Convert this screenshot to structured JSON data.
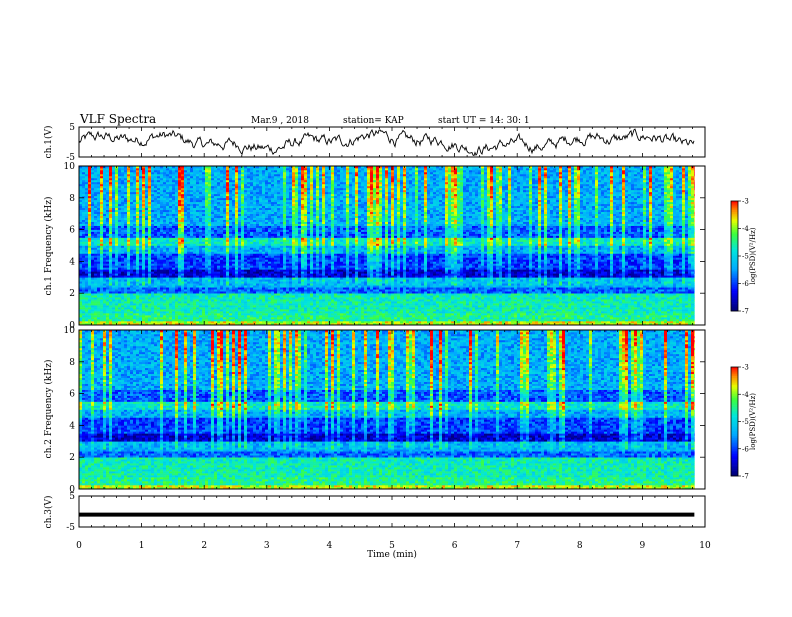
{
  "header": {
    "title": "VLF Spectra",
    "date": "Mar.9 , 2018",
    "station": "station= KAP",
    "start_ut": "start UT = 14: 30: 1"
  },
  "colors": {
    "spectrum_low": "#000080",
    "spectrum_mid": "#00c8ff",
    "spectrum_high": "#ff0000",
    "trace": "#000000"
  },
  "chart_data": [
    {
      "type": "line",
      "name": "ch1-waveform",
      "ylabel": "ch.1(V)",
      "ylim": [
        -5,
        5
      ],
      "yticks": [
        "5",
        "-5"
      ],
      "xlim": [
        0,
        10
      ],
      "x_end": 9.83,
      "note_series": "noisy waveform oscillating roughly between -3 V and 3 V"
    },
    {
      "type": "heatmap",
      "name": "ch1-spectrogram",
      "ylabel": "ch.1 Frequency (kHz)",
      "ylim": [
        0,
        10
      ],
      "yticks": [
        "0",
        "2",
        "4",
        "6",
        "8",
        "10"
      ],
      "xlim": [
        0,
        10
      ],
      "x_end": 9.83,
      "colorbar": {
        "label": "log(PSD)(V²/Hz)",
        "range": [
          -7,
          -3
        ],
        "ticks": [
          "-3",
          "-4",
          "-5",
          "-6",
          "-7"
        ]
      }
    },
    {
      "type": "heatmap",
      "name": "ch2-spectrogram",
      "ylabel": "ch.2 Frequency (kHz)",
      "ylim": [
        0,
        10
      ],
      "yticks": [
        "0",
        "2",
        "4",
        "6",
        "8",
        "10"
      ],
      "xlim": [
        0,
        10
      ],
      "x_end": 9.83,
      "colorbar": {
        "label": "log(PSD)(V²/Hz)",
        "range": [
          -7,
          -3
        ],
        "ticks": [
          "-3",
          "-4",
          "-5",
          "-6",
          "-7"
        ]
      }
    },
    {
      "type": "line",
      "name": "ch3-waveform",
      "ylabel": "ch.3(V)",
      "ylim": [
        -5,
        5
      ],
      "yticks": [
        "5",
        "-5"
      ],
      "xlim": [
        0,
        10
      ],
      "x_end": 9.83,
      "level": -1
    }
  ],
  "xaxis": {
    "label": "Time (min)",
    "ticks": [
      "0",
      "1",
      "2",
      "3",
      "4",
      "5",
      "6",
      "7",
      "8",
      "9",
      "10"
    ]
  }
}
